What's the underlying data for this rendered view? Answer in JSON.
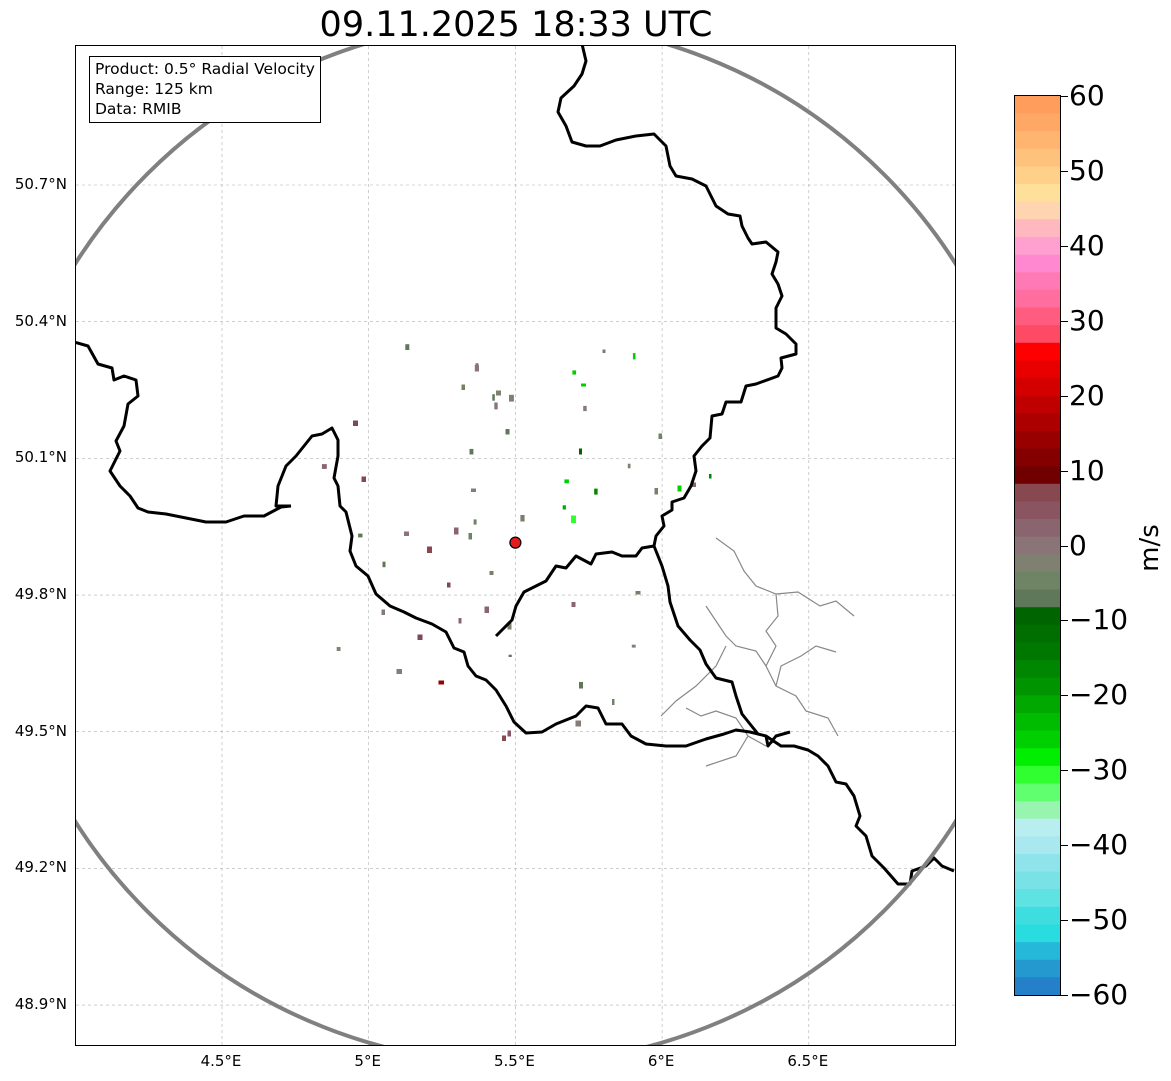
{
  "title": "09.11.2025 18:33 UTC",
  "info_box": {
    "product": "Product: 0.5° Radial Velocity",
    "range": "Range: 125 km",
    "data": "Data: RMIB"
  },
  "map": {
    "lon_range": [
      4.0,
      7.0
    ],
    "lat_range": [
      48.8,
      51.0
    ],
    "radar_site": {
      "lon": 5.5,
      "lat": 49.915
    },
    "range_km": 125,
    "lat_ticks": [
      {
        "value": 50.7,
        "label": "50.7°N"
      },
      {
        "value": 50.4,
        "label": "50.4°N"
      },
      {
        "value": 50.1,
        "label": "50.1°N"
      },
      {
        "value": 49.8,
        "label": "49.8°N"
      },
      {
        "value": 49.5,
        "label": "49.5°N"
      },
      {
        "value": 49.2,
        "label": "49.2°N"
      },
      {
        "value": 48.9,
        "label": "48.9°N"
      }
    ],
    "lon_ticks": [
      {
        "value": 4.5,
        "label": "4.5°E"
      },
      {
        "value": 5.0,
        "label": "5°E"
      },
      {
        "value": 5.5,
        "label": "5.5°E"
      },
      {
        "value": 6.0,
        "label": "6°E"
      },
      {
        "value": 6.5,
        "label": "6.5°E"
      }
    ],
    "colors": {
      "range_ring": "#808080",
      "border": "#000000",
      "province": "#888888",
      "grid": "#b0b0b0",
      "radar_marker": "#e41a1c"
    }
  },
  "colorbar": {
    "unit": "m/s",
    "min": -60,
    "max": 60,
    "ticks": [
      {
        "value": 60,
        "label": "60"
      },
      {
        "value": 50,
        "label": "50"
      },
      {
        "value": 40,
        "label": "40"
      },
      {
        "value": 30,
        "label": "30"
      },
      {
        "value": 20,
        "label": "20"
      },
      {
        "value": 10,
        "label": "10"
      },
      {
        "value": 0,
        "label": "0"
      },
      {
        "value": -10,
        "label": "−10"
      },
      {
        "value": -20,
        "label": "−20"
      },
      {
        "value": -30,
        "label": "−30"
      },
      {
        "value": -40,
        "label": "−40"
      },
      {
        "value": -50,
        "label": "−50"
      },
      {
        "value": -60,
        "label": "−60"
      }
    ],
    "bands_top_to_bottom": [
      "#ff9d5c",
      "#ffa866",
      "#ffb470",
      "#ffc27d",
      "#ffd08a",
      "#ffe09a",
      "#ffd4b0",
      "#ffb8c0",
      "#ffa0d0",
      "#ff88d0",
      "#ff7ab4",
      "#ff6e9e",
      "#ff5c80",
      "#ff4a66",
      "#ff0000",
      "#e80000",
      "#d40000",
      "#c00000",
      "#ac0000",
      "#980000",
      "#840000",
      "#700000",
      "#884850",
      "#8a5560",
      "#8a6570",
      "#8a7478",
      "#7f8070",
      "#6f8465",
      "#60785a",
      "#006400",
      "#006e00",
      "#007800",
      "#008600",
      "#009400",
      "#00a800",
      "#00bc00",
      "#00d000",
      "#00ee00",
      "#30ff30",
      "#60ff70",
      "#98f5b0",
      "#b8eef0",
      "#a8e8ee",
      "#8ee4ea",
      "#78e2e6",
      "#5ee2e2",
      "#3edee0",
      "#28dce0",
      "#26b8d8",
      "#2499d0",
      "#2480c8"
    ]
  }
}
